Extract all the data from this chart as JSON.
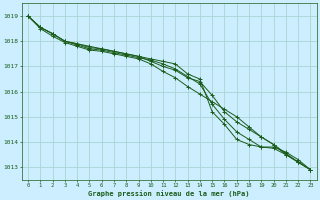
{
  "background_color": "#cceeff",
  "grid_color": "#aad4d4",
  "line_color": "#1a5c1a",
  "xlabel": "Graphe pression niveau de la mer (hPa)",
  "xmin": -0.5,
  "xmax": 23.5,
  "ymin": 1012.5,
  "ymax": 1019.5,
  "yticks": [
    1013,
    1014,
    1015,
    1016,
    1017,
    1018,
    1019
  ],
  "xticks": [
    0,
    1,
    2,
    3,
    4,
    5,
    6,
    7,
    8,
    9,
    10,
    11,
    12,
    13,
    14,
    15,
    16,
    17,
    18,
    19,
    20,
    21,
    22,
    23
  ],
  "series": [
    [
      1019.0,
      1018.55,
      1018.3,
      1018.0,
      1017.9,
      1017.8,
      1017.7,
      1017.6,
      1017.5,
      1017.4,
      1017.3,
      1017.2,
      1017.1,
      1016.7,
      1016.5,
      1015.2,
      1014.7,
      1014.1,
      1013.9,
      1013.8,
      1013.8,
      1013.6,
      1013.3,
      1012.9
    ],
    [
      1019.0,
      1018.55,
      1018.3,
      1018.0,
      1017.9,
      1017.75,
      1017.7,
      1017.6,
      1017.5,
      1017.4,
      1017.2,
      1017.0,
      1016.85,
      1016.55,
      1016.4,
      1015.85,
      1015.2,
      1014.8,
      1014.5,
      1014.2,
      1013.9,
      1013.5,
      1013.2,
      1012.9
    ],
    [
      1019.0,
      1018.55,
      1018.3,
      1018.0,
      1017.85,
      1017.7,
      1017.65,
      1017.55,
      1017.45,
      1017.35,
      1017.25,
      1017.1,
      1016.9,
      1016.6,
      1016.3,
      1015.5,
      1014.9,
      1014.4,
      1014.1,
      1013.8,
      1013.75,
      1013.5,
      1013.2,
      1012.9
    ],
    [
      1019.0,
      1018.5,
      1018.2,
      1017.95,
      1017.8,
      1017.65,
      1017.6,
      1017.5,
      1017.4,
      1017.3,
      1017.1,
      1016.8,
      1016.55,
      1016.2,
      1015.9,
      1015.6,
      1015.3,
      1015.0,
      1014.6,
      1014.2,
      1013.9,
      1013.55,
      1013.2,
      1012.9
    ]
  ]
}
